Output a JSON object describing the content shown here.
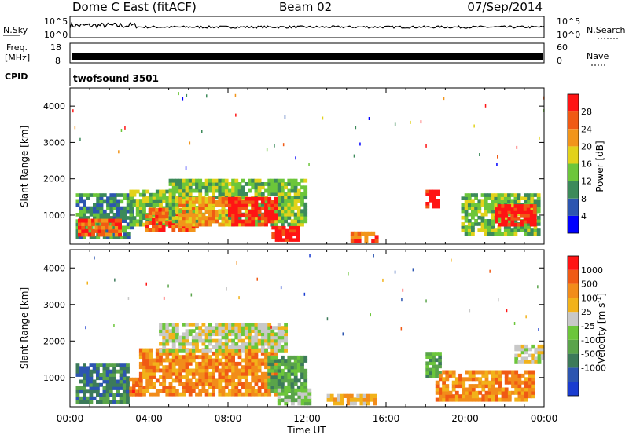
{
  "header": {
    "station": "Dome C East (fitACF)",
    "beam": "Beam 02",
    "date": "07/Sep/2014"
  },
  "strips": {
    "nsky_label": "N.Sky",
    "nsearch_label": "N.Search",
    "noise_ticks": [
      "10^5",
      "10^0"
    ],
    "freq_label_1": "Freq.",
    "freq_label_2": "[MHz]",
    "freq_ticks": [
      "18",
      "8"
    ],
    "nave_label": "Nave",
    "nave_ticks": [
      "60",
      "0"
    ],
    "cpid_label": "CPID",
    "cpid_value": "twofsound 3501"
  },
  "colors": {
    "power_scale": [
      "#0000ff",
      "#2c55b0",
      "#3c8a5a",
      "#6cc63a",
      "#e2d21a",
      "#f2951a",
      "#f05a14",
      "#ff1414"
    ],
    "velocity_scale": [
      "#1a3cd0",
      "#2c55b0",
      "#3c7a5a",
      "#5aa44a",
      "#6cc63a",
      "#c8c8c8",
      "#f2b21a",
      "#f28c1a",
      "#f05a14",
      "#ff1414"
    ]
  },
  "chart_data": [
    {
      "type": "heatmap",
      "panel": "power",
      "ylabel": "Slant Range [km]",
      "yticks": [
        "1000",
        "2000",
        "3000",
        "4000"
      ],
      "ylim": [
        200,
        4500
      ],
      "xlim": [
        0,
        24
      ],
      "colorbar_label": "Power [dB]",
      "colorbar_ticks": [
        "4",
        "8",
        "12",
        "16",
        "20",
        "24",
        "28"
      ],
      "regions": [
        {
          "t0": 0.3,
          "t1": 3.2,
          "r0": 350,
          "r1": 1600,
          "level": 2
        },
        {
          "t0": 0.4,
          "t1": 2.6,
          "r0": 420,
          "r1": 900,
          "level": 6
        },
        {
          "t0": 3.0,
          "t1": 6.0,
          "r0": 700,
          "r1": 1700,
          "level": 3
        },
        {
          "t0": 3.8,
          "t1": 6.5,
          "r0": 550,
          "r1": 1200,
          "level": 6
        },
        {
          "t0": 5.0,
          "t1": 12.0,
          "r0": 700,
          "r1": 2000,
          "level": 3
        },
        {
          "t0": 5.5,
          "t1": 8.0,
          "r0": 700,
          "r1": 1500,
          "level": 5
        },
        {
          "t0": 8.0,
          "t1": 10.5,
          "r0": 700,
          "r1": 1500,
          "level": 7
        },
        {
          "t0": 10.2,
          "t1": 11.6,
          "r0": 280,
          "r1": 700,
          "level": 7
        },
        {
          "t0": 14.2,
          "t1": 15.6,
          "r0": 250,
          "r1": 550,
          "level": 6
        },
        {
          "t0": 18.0,
          "t1": 18.7,
          "r0": 1200,
          "r1": 1700,
          "level": 7
        },
        {
          "t0": 19.8,
          "t1": 23.8,
          "r0": 450,
          "r1": 1600,
          "level": 3
        },
        {
          "t0": 21.5,
          "t1": 23.6,
          "r0": 700,
          "r1": 1300,
          "level": 7
        }
      ]
    },
    {
      "type": "heatmap",
      "panel": "velocity",
      "ylabel": "Slant Range [km]",
      "yticks": [
        "1000",
        "2000",
        "3000",
        "4000"
      ],
      "ylim": [
        200,
        4500
      ],
      "xlim": [
        0,
        24
      ],
      "xlabel": "Time UT",
      "xticks": [
        "00:00",
        "04:00",
        "08:00",
        "12:00",
        "16:00",
        "20:00",
        "00:00"
      ],
      "colorbar_label": "Velocity [m s",
      "colorbar_label_sup": "-1",
      "colorbar_label_end": "]",
      "colorbar_ticks": [
        "1000",
        "500",
        "100",
        "25",
        "-25",
        "-100",
        "-500",
        "-1000"
      ],
      "regions": [
        {
          "t0": 0.3,
          "t1": 3.0,
          "r0": 300,
          "r1": 1400,
          "level": 2
        },
        {
          "t0": 3.0,
          "t1": 3.6,
          "r0": 500,
          "r1": 1000,
          "level": 8
        },
        {
          "t0": 3.5,
          "t1": 10.5,
          "r0": 500,
          "r1": 1800,
          "level": 7
        },
        {
          "t0": 4.5,
          "t1": 11.0,
          "r0": 1700,
          "r1": 2500,
          "level": 5
        },
        {
          "t0": 10.0,
          "t1": 12.0,
          "r0": 600,
          "r1": 1600,
          "level": 3
        },
        {
          "t0": 10.5,
          "t1": 12.2,
          "r0": 250,
          "r1": 700,
          "level": 4
        },
        {
          "t0": 13.0,
          "t1": 15.5,
          "r0": 250,
          "r1": 550,
          "level": 6
        },
        {
          "t0": 18.0,
          "t1": 18.8,
          "r0": 1000,
          "r1": 1700,
          "level": 3
        },
        {
          "t0": 18.5,
          "t1": 23.5,
          "r0": 350,
          "r1": 1200,
          "level": 7
        },
        {
          "t0": 22.5,
          "t1": 24.0,
          "r0": 1400,
          "r1": 1900,
          "level": 5
        }
      ]
    }
  ]
}
